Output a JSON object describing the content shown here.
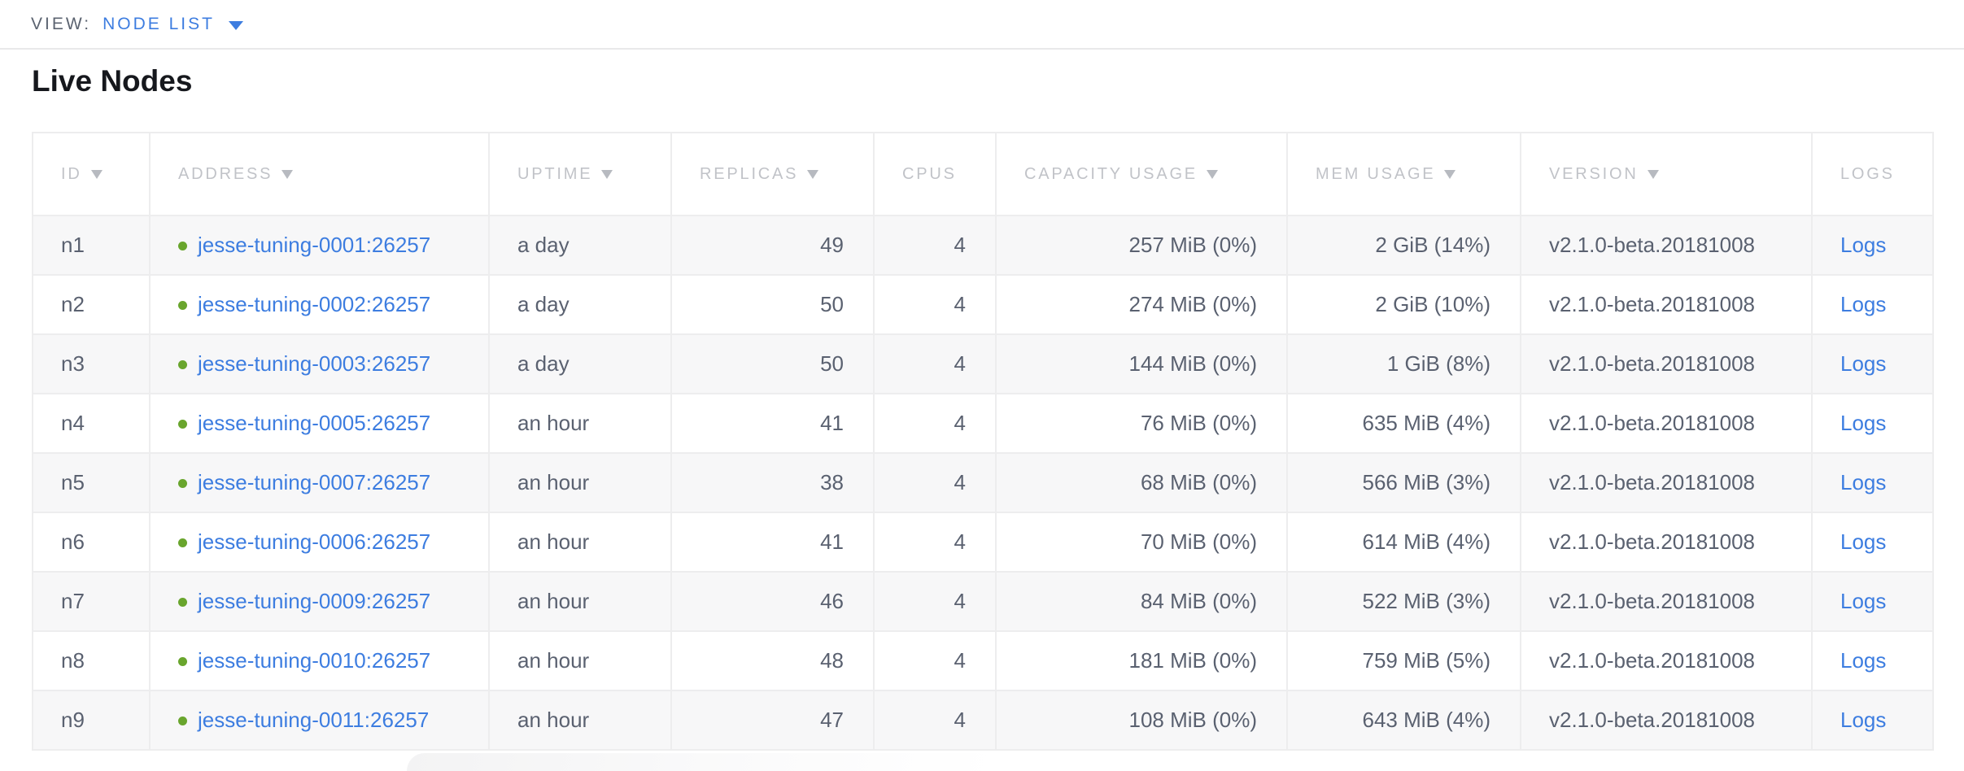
{
  "view_bar": {
    "label": "VIEW:",
    "selected": "NODE LIST"
  },
  "page": {
    "title": "Live Nodes"
  },
  "table": {
    "columns": [
      {
        "key": "id",
        "label": "ID",
        "sortable": true
      },
      {
        "key": "address",
        "label": "ADDRESS",
        "sortable": true
      },
      {
        "key": "uptime",
        "label": "UPTIME",
        "sortable": true
      },
      {
        "key": "replicas",
        "label": "REPLICAS",
        "sortable": true
      },
      {
        "key": "cpus",
        "label": "CPUS",
        "sortable": false
      },
      {
        "key": "capacity",
        "label": "CAPACITY USAGE",
        "sortable": true
      },
      {
        "key": "mem",
        "label": "MEM USAGE",
        "sortable": true
      },
      {
        "key": "version",
        "label": "VERSION",
        "sortable": true
      },
      {
        "key": "logs",
        "label": "LOGS",
        "sortable": false
      }
    ],
    "rows": [
      {
        "id": "n1",
        "address": "jesse-tuning-0001:26257",
        "uptime": "a day",
        "replicas": "49",
        "cpus": "4",
        "capacity": "257 MiB (0%)",
        "mem": "2 GiB (14%)",
        "version": "v2.1.0-beta.20181008",
        "logs": "Logs"
      },
      {
        "id": "n2",
        "address": "jesse-tuning-0002:26257",
        "uptime": "a day",
        "replicas": "50",
        "cpus": "4",
        "capacity": "274 MiB (0%)",
        "mem": "2 GiB (10%)",
        "version": "v2.1.0-beta.20181008",
        "logs": "Logs"
      },
      {
        "id": "n3",
        "address": "jesse-tuning-0003:26257",
        "uptime": "a day",
        "replicas": "50",
        "cpus": "4",
        "capacity": "144 MiB (0%)",
        "mem": "1 GiB (8%)",
        "version": "v2.1.0-beta.20181008",
        "logs": "Logs"
      },
      {
        "id": "n4",
        "address": "jesse-tuning-0005:26257",
        "uptime": "an hour",
        "replicas": "41",
        "cpus": "4",
        "capacity": "76 MiB (0%)",
        "mem": "635 MiB (4%)",
        "version": "v2.1.0-beta.20181008",
        "logs": "Logs"
      },
      {
        "id": "n5",
        "address": "jesse-tuning-0007:26257",
        "uptime": "an hour",
        "replicas": "38",
        "cpus": "4",
        "capacity": "68 MiB (0%)",
        "mem": "566 MiB (3%)",
        "version": "v2.1.0-beta.20181008",
        "logs": "Logs"
      },
      {
        "id": "n6",
        "address": "jesse-tuning-0006:26257",
        "uptime": "an hour",
        "replicas": "41",
        "cpus": "4",
        "capacity": "70 MiB (0%)",
        "mem": "614 MiB (4%)",
        "version": "v2.1.0-beta.20181008",
        "logs": "Logs"
      },
      {
        "id": "n7",
        "address": "jesse-tuning-0009:26257",
        "uptime": "an hour",
        "replicas": "46",
        "cpus": "4",
        "capacity": "84 MiB (0%)",
        "mem": "522 MiB (3%)",
        "version": "v2.1.0-beta.20181008",
        "logs": "Logs"
      },
      {
        "id": "n8",
        "address": "jesse-tuning-0010:26257",
        "uptime": "an hour",
        "replicas": "48",
        "cpus": "4",
        "capacity": "181 MiB (0%)",
        "mem": "759 MiB (5%)",
        "version": "v2.1.0-beta.20181008",
        "logs": "Logs"
      },
      {
        "id": "n9",
        "address": "jesse-tuning-0011:26257",
        "uptime": "an hour",
        "replicas": "47",
        "cpus": "4",
        "capacity": "108 MiB (0%)",
        "mem": "643 MiB (4%)",
        "version": "v2.1.0-beta.20181008",
        "logs": "Logs"
      }
    ]
  },
  "colors": {
    "accent-blue": "#3d7de0",
    "healthy-green": "#69a52d",
    "header-gray": "#c1c3c8",
    "body-text": "#5a6170"
  }
}
